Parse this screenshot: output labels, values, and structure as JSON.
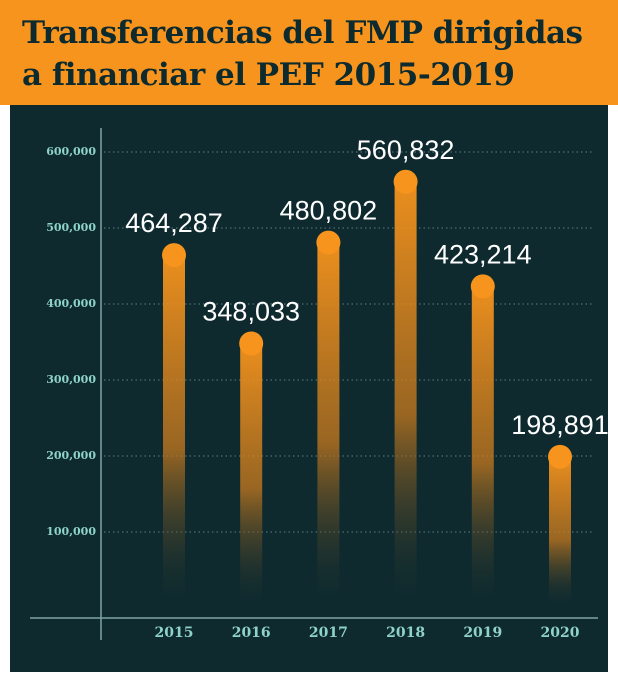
{
  "title": {
    "line1": "Transferencias del FMP dirigidas",
    "line2": "a financiar el  PEF 2015-2019"
  },
  "colors": {
    "title_band": "#f7941d",
    "title_text": "#0d2a2e",
    "panel": "#0e2a2f",
    "bar": "#f7941d",
    "axis_text": "#8fd3c8",
    "data_label": "#ffffff"
  },
  "chart_data": {
    "type": "bar",
    "categories": [
      "2015",
      "2016",
      "2017",
      "2018",
      "2019",
      "2020"
    ],
    "values": [
      464287,
      348033,
      480802,
      560832,
      423214,
      198891
    ],
    "data_labels": [
      "464,287",
      "348,033",
      "480,802",
      "560,832",
      "423,214",
      "198,891"
    ],
    "y_ticks": [
      100000,
      200000,
      300000,
      400000,
      500000,
      600000
    ],
    "y_tick_labels": [
      "100,000",
      "200,000",
      "300,000",
      "400,000",
      "500,000",
      "600,000"
    ],
    "ylim": [
      0,
      600000
    ],
    "grid": true
  }
}
